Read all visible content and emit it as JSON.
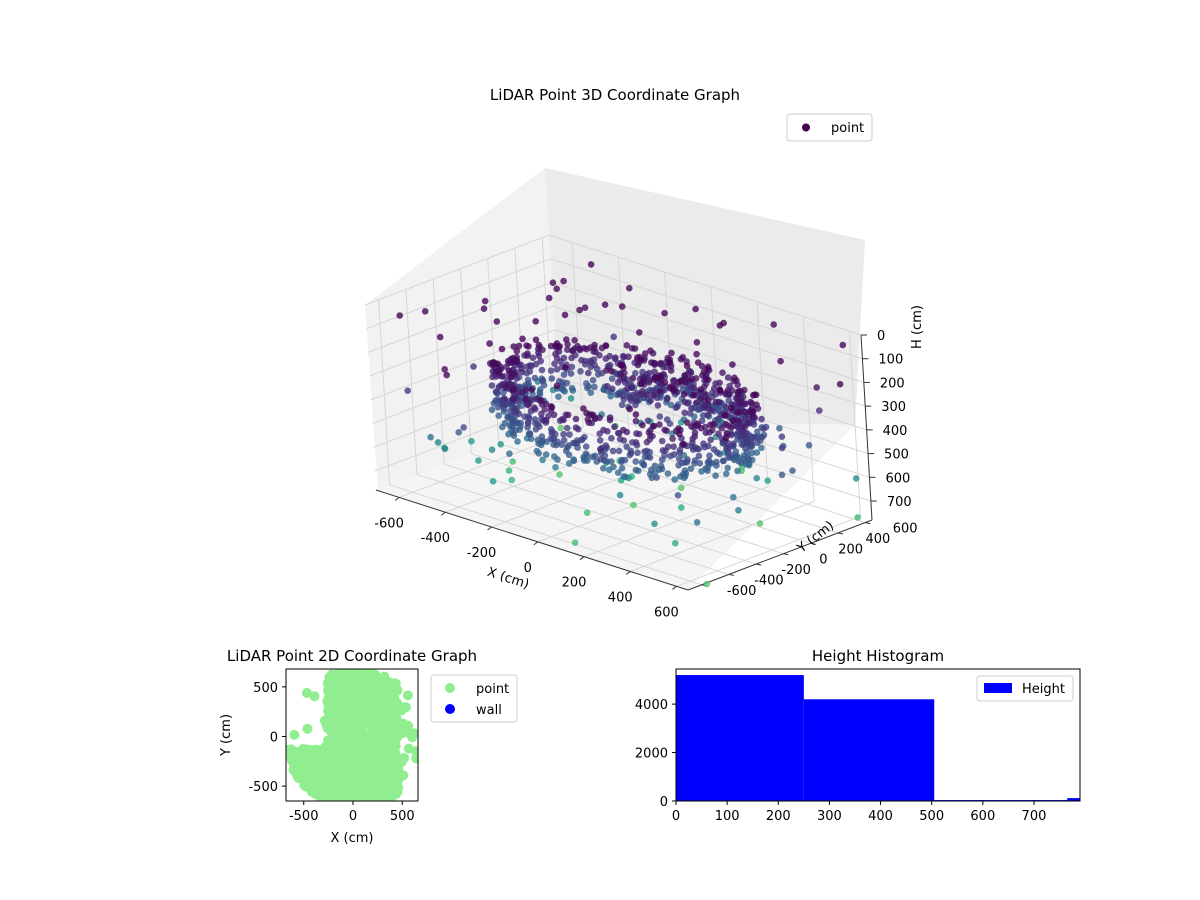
{
  "colors": {
    "point_2d": "#90ee90",
    "wall_2d": "#0000ff",
    "histogram": "#0000ff",
    "legend_3d_marker": "#440154",
    "pane_left": "#f2f2f2",
    "pane_back": "#ebebeb",
    "pane_floor": "#f5f5f5"
  },
  "chart_data": [
    {
      "type": "scatter",
      "title": "LiDAR Point 3D Coordinate Graph",
      "xlabel": "X (cm)",
      "ylabel": "Y (cm)",
      "zlabel": "H (cm)",
      "xlim": [
        -700,
        650
      ],
      "ylim": [
        -700,
        650
      ],
      "zlim": [
        0,
        780
      ],
      "z_axis_inverted": true,
      "colormap": "viridis",
      "x_ticks": [
        "-600",
        "-400",
        "-200",
        "0",
        "200",
        "400",
        "600"
      ],
      "y_ticks": [
        "-600",
        "-400",
        "-200",
        "0",
        "200",
        "400",
        "600"
      ],
      "z_ticks": [
        "0",
        "100",
        "200",
        "300",
        "400",
        "500",
        "600",
        "700"
      ],
      "legend": [
        "point"
      ],
      "legend_placement": "top-right",
      "grid": true,
      "series_description": "ring of wall points roughly 400-500 cm from origin at heights 250-500 cm, plus sparse scattered points up to ~780 cm"
    },
    {
      "type": "scatter",
      "title": "LiDAR Point 2D Coordinate Graph",
      "xlabel": "X (cm)",
      "ylabel": "Y (cm)",
      "xlim": [
        -680,
        660
      ],
      "ylim": [
        -650,
        680
      ],
      "x_ticks": [
        "-500",
        "0",
        "500"
      ],
      "y_ticks": [
        "-500",
        "0",
        "500"
      ],
      "series": [
        {
          "name": "point"
        },
        {
          "name": "wall"
        }
      ],
      "legend_placement": "outside-right"
    },
    {
      "type": "bar",
      "title": "Height Histogram",
      "xlim": [
        0,
        790
      ],
      "ylim": [
        0,
        5450
      ],
      "x_ticks": [
        "0",
        "100",
        "200",
        "300",
        "400",
        "500",
        "600",
        "700"
      ],
      "y_ticks": [
        "0",
        "2000",
        "4000"
      ],
      "bins": [
        {
          "start": 0,
          "end": 250,
          "count": 5200
        },
        {
          "start": 250,
          "end": 505,
          "count": 4200
        },
        {
          "start": 505,
          "end": 765,
          "count": 40
        },
        {
          "start": 765,
          "end": 790,
          "count": 120
        }
      ],
      "series": [
        {
          "name": "Height"
        }
      ],
      "legend_placement": "top-right"
    }
  ]
}
